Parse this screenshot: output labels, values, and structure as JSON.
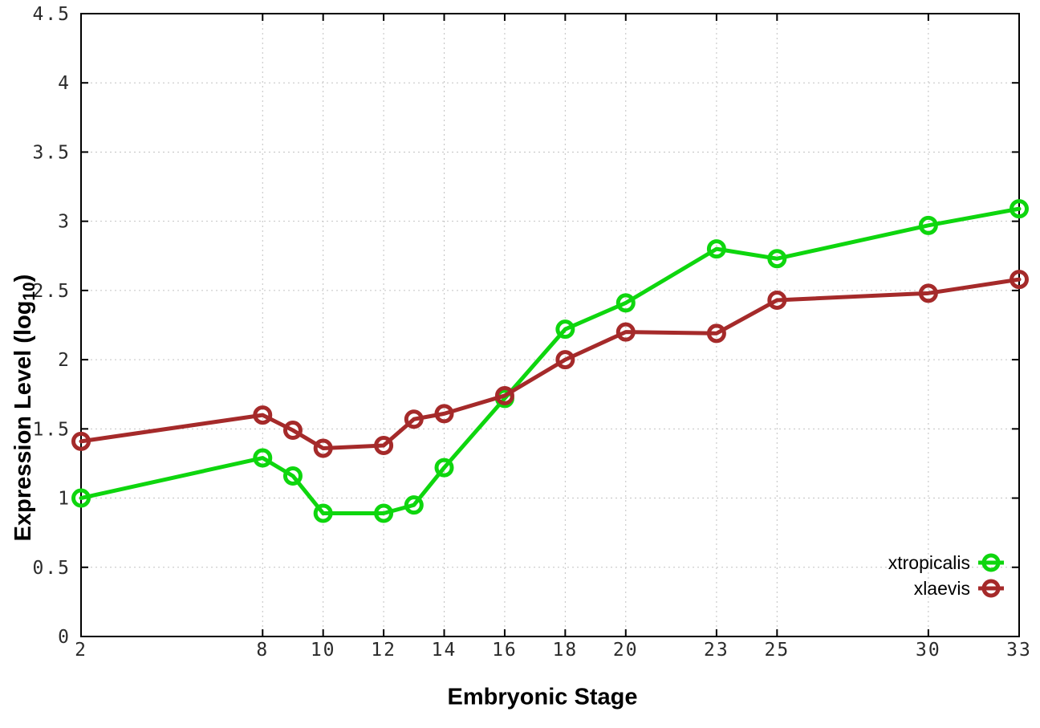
{
  "page": {
    "background": "#ffffff"
  },
  "chart_data": {
    "type": "line",
    "title": "",
    "xlabel": "Embryonic Stage",
    "ylabel": "Expression Level (log10)",
    "ylabel_prefix": "Expression Level (log",
    "ylabel_sub": "10",
    "ylabel_suffix": ")",
    "x": [
      2,
      8,
      9,
      10,
      12,
      13,
      14,
      16,
      18,
      20,
      23,
      25,
      30,
      33
    ],
    "series": [
      {
        "name": "xtropicalis",
        "color": "#0ed60e",
        "values": [
          1.0,
          1.29,
          1.16,
          0.89,
          0.89,
          0.95,
          1.22,
          1.72,
          2.22,
          2.41,
          2.8,
          2.73,
          2.97,
          3.09
        ]
      },
      {
        "name": "xlaevis",
        "color": "#a52a2a",
        "values": [
          1.41,
          1.6,
          1.49,
          1.36,
          1.38,
          1.57,
          1.61,
          1.74,
          2.0,
          2.2,
          2.19,
          2.43,
          2.48,
          2.58
        ]
      }
    ],
    "xlim": [
      2,
      33
    ],
    "ylim": [
      0,
      4.5
    ],
    "xticks": {
      "values": [
        2,
        8,
        10,
        12,
        14,
        16,
        18,
        20,
        23,
        25,
        30,
        33
      ],
      "labels": [
        "2",
        "8",
        "10",
        "12",
        "14",
        "16",
        "18",
        "20",
        "23",
        "25",
        "30",
        "33"
      ]
    },
    "yticks": {
      "values": [
        0,
        0.5,
        1,
        1.5,
        2,
        2.5,
        3,
        3.5,
        4,
        4.5
      ],
      "labels": [
        "0",
        "0.5",
        "1",
        "1.5",
        "2",
        "2.5",
        "3",
        "3.5",
        "4",
        "4.5"
      ]
    },
    "grid": true,
    "legend_position": "bottom-right-inside",
    "legend": [
      {
        "label": "xtropicalis"
      },
      {
        "label": "xlaevis"
      }
    ]
  },
  "style": {
    "axis_color": "#000000",
    "grid_color": "#c2c2c2",
    "tick_label_color": "#2b2b2b",
    "series_green": "#0ed60e",
    "series_red": "#a52a2a"
  }
}
